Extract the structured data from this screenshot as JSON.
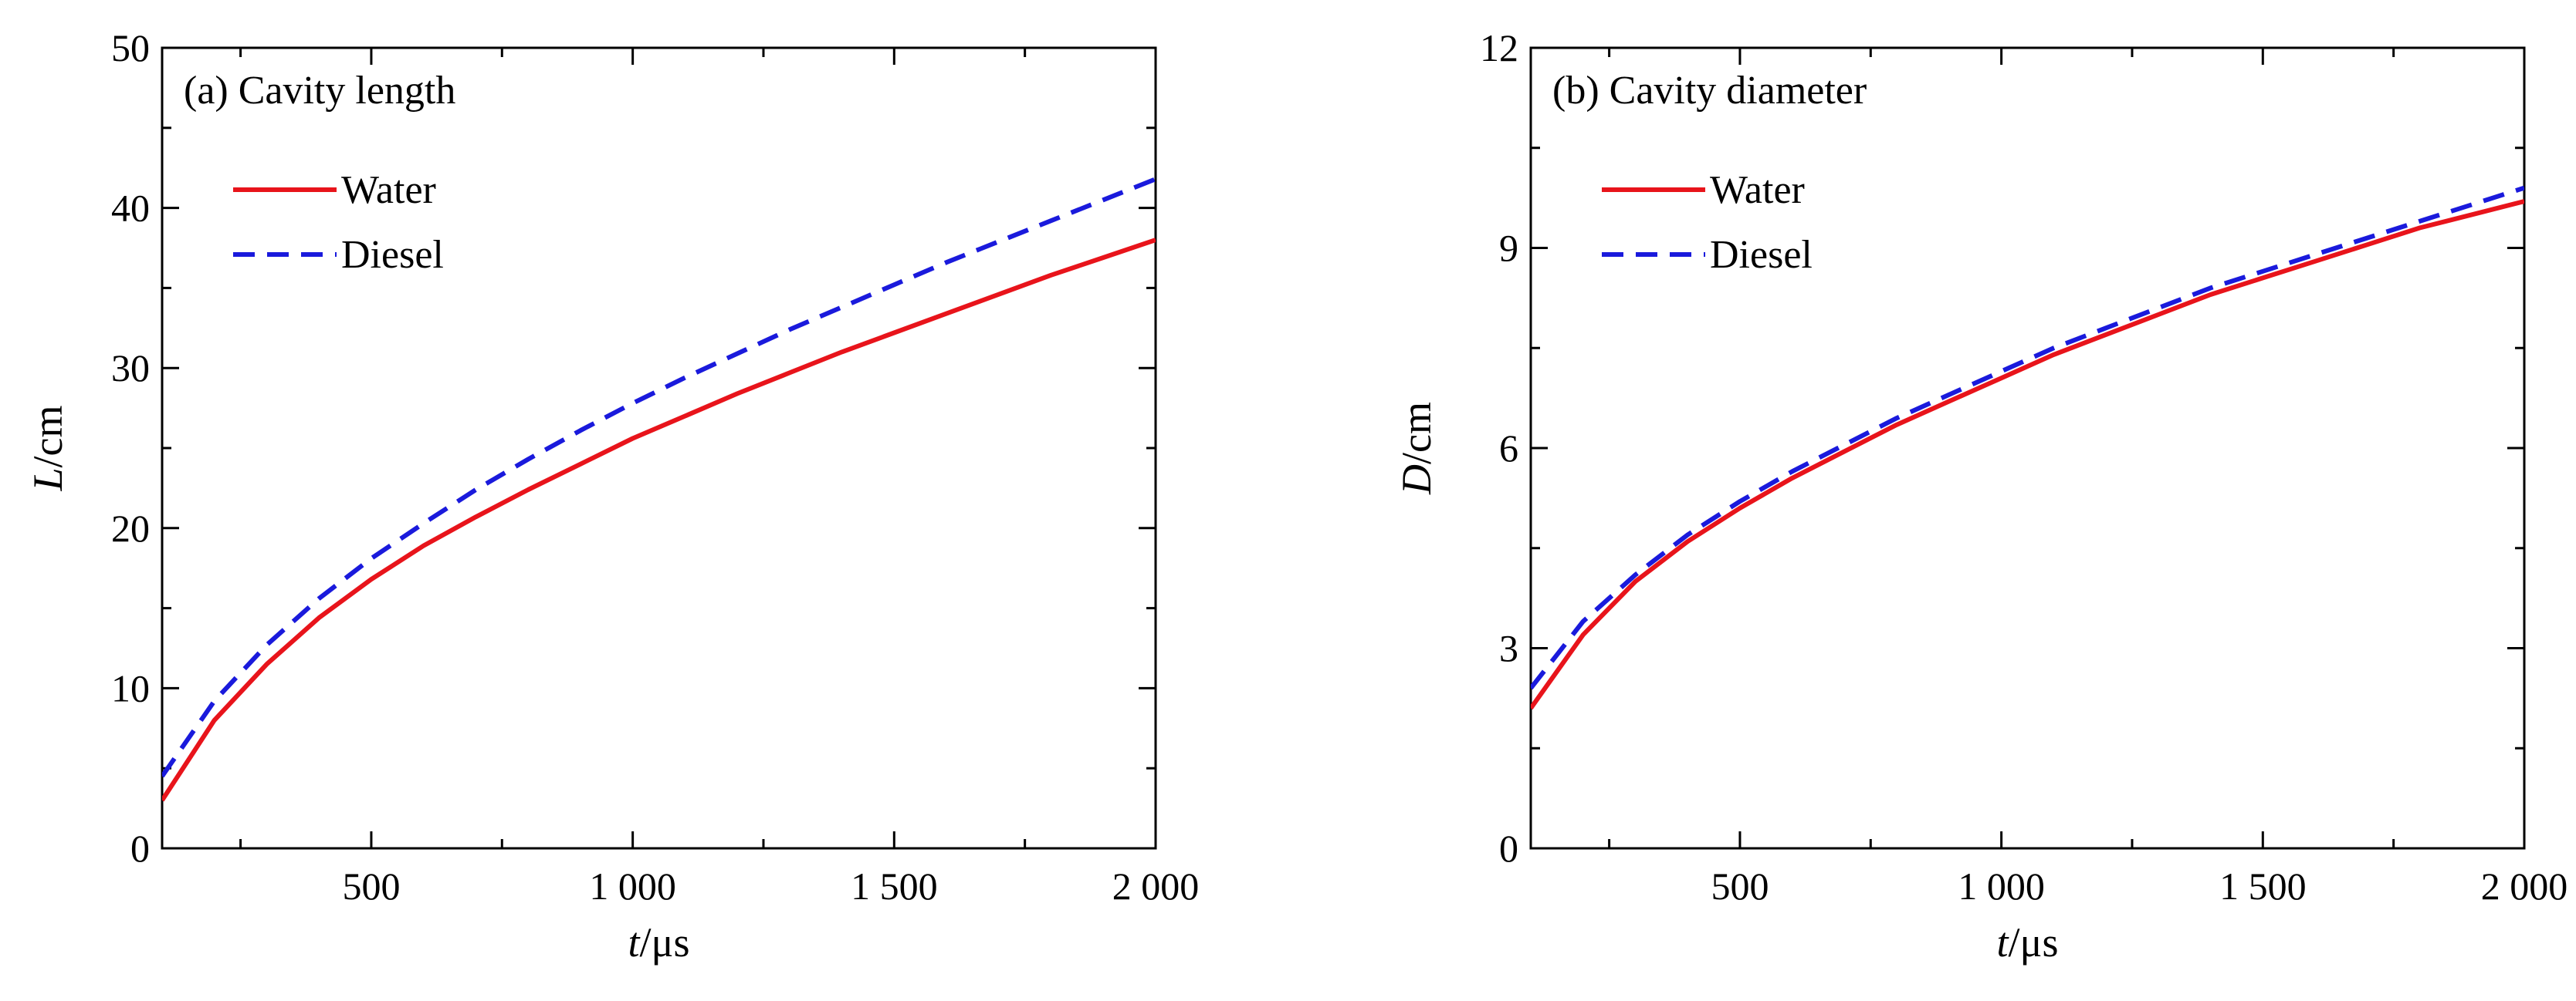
{
  "chart_data": [
    {
      "type": "line",
      "title": "(a) Cavity length",
      "xlabel": {
        "symbol": "t",
        "unit": "/μs"
      },
      "ylabel": {
        "symbol": "L",
        "unit": "/cm"
      },
      "xlim": [
        100,
        2000
      ],
      "ylim": [
        0,
        50
      ],
      "xticks": [
        500,
        1000,
        1500,
        2000
      ],
      "xtick_labels": [
        "500",
        "1 000",
        "1 500",
        "2 000"
      ],
      "xminor": [
        250,
        750,
        1250,
        1750
      ],
      "yticks": [
        0,
        10,
        20,
        30,
        40,
        50
      ],
      "ytick_labels": [
        "0",
        "10",
        "20",
        "30",
        "40",
        "50"
      ],
      "yminor": [
        5,
        15,
        25,
        35,
        45
      ],
      "grid": false,
      "legend": "upper-left",
      "series": [
        {
          "name": "Water",
          "color": "#e8141b",
          "style": "solid",
          "x": [
            100,
            200,
            300,
            400,
            500,
            600,
            700,
            800,
            900,
            1000,
            1100,
            1200,
            1300,
            1400,
            1500,
            1600,
            1700,
            1800,
            1900,
            2000
          ],
          "y": [
            3.0,
            8.0,
            11.5,
            14.4,
            16.8,
            18.9,
            20.7,
            22.4,
            24.0,
            25.6,
            27.0,
            28.4,
            29.7,
            31.0,
            32.2,
            33.4,
            34.6,
            35.8,
            36.9,
            38.0
          ]
        },
        {
          "name": "Diesel",
          "color": "#1a1adc",
          "style": "dashed",
          "x": [
            100,
            200,
            300,
            400,
            500,
            600,
            700,
            800,
            900,
            1000,
            1100,
            1200,
            1300,
            1400,
            1500,
            1600,
            1700,
            1800,
            1900,
            2000
          ],
          "y": [
            4.5,
            9.2,
            12.7,
            15.6,
            18.1,
            20.3,
            22.4,
            24.3,
            26.1,
            27.8,
            29.4,
            30.9,
            32.4,
            33.8,
            35.2,
            36.6,
            37.9,
            39.2,
            40.5,
            41.8
          ]
        }
      ]
    },
    {
      "type": "line",
      "title": "(b) Cavity diameter",
      "xlabel": {
        "symbol": "t",
        "unit": "/μs"
      },
      "ylabel": {
        "symbol": "D",
        "unit": "/cm"
      },
      "xlim": [
        100,
        2000
      ],
      "ylim": [
        0,
        12
      ],
      "xticks": [
        500,
        1000,
        1500,
        2000
      ],
      "xtick_labels": [
        "500",
        "1 000",
        "1 500",
        "2 000"
      ],
      "xminor": [
        250,
        750,
        1250,
        1750
      ],
      "yticks": [
        0,
        3,
        6,
        9,
        12
      ],
      "ytick_labels": [
        "0",
        "3",
        "6",
        "9",
        "12"
      ],
      "yminor": [
        1.5,
        4.5,
        7.5,
        10.5
      ],
      "grid": false,
      "legend": "upper-left",
      "series": [
        {
          "name": "Water",
          "color": "#e8141b",
          "style": "solid",
          "x": [
            100,
            200,
            300,
            400,
            500,
            600,
            700,
            800,
            900,
            1000,
            1100,
            1200,
            1300,
            1400,
            1500,
            1600,
            1700,
            1800,
            1900,
            2000
          ],
          "y": [
            2.1,
            3.2,
            4.0,
            4.6,
            5.1,
            5.55,
            5.95,
            6.35,
            6.7,
            7.05,
            7.4,
            7.7,
            8.0,
            8.3,
            8.55,
            8.8,
            9.05,
            9.3,
            9.5,
            9.7
          ]
        },
        {
          "name": "Diesel",
          "color": "#1a1adc",
          "style": "dashed",
          "x": [
            100,
            200,
            300,
            400,
            500,
            600,
            700,
            800,
            900,
            1000,
            1100,
            1200,
            1300,
            1400,
            1500,
            1600,
            1700,
            1800,
            1900,
            2000
          ],
          "y": [
            2.4,
            3.4,
            4.1,
            4.7,
            5.2,
            5.65,
            6.05,
            6.45,
            6.8,
            7.15,
            7.5,
            7.8,
            8.1,
            8.4,
            8.65,
            8.9,
            9.15,
            9.4,
            9.65,
            9.9
          ]
        }
      ]
    }
  ]
}
